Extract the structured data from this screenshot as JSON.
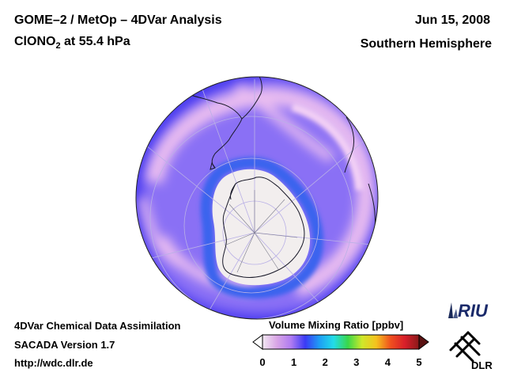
{
  "header": {
    "title_line1": "GOME–2 / MetOp – 4DVar Analysis",
    "title_line2_prefix": "ClONO",
    "title_line2_sub": "2",
    "title_line2_suffix": " at 55.4 hPa",
    "date": "Jun 15, 2008",
    "hemisphere": "Southern Hemisphere"
  },
  "footer": {
    "line1": "4DVar Chemical Data Assimilation",
    "line2": "SACADA Version 1.7",
    "line3": "http://wdc.dlr.de"
  },
  "colorbar": {
    "title": "Volume Mixing Ratio [ppbv]",
    "ticks": [
      "0",
      "1",
      "2",
      "3",
      "4",
      "5"
    ],
    "min": 0,
    "max": 5,
    "colors": [
      "#f2e8f2",
      "#d9a6e6",
      "#b07cf2",
      "#3a3af5",
      "#1e9ef5",
      "#22dce8",
      "#3ad84a",
      "#cfe82a",
      "#f5c21e",
      "#f0501e",
      "#d81e2a",
      "#8a1a1a"
    ]
  },
  "map": {
    "projection": "orthographic south polar",
    "field_colors": {
      "background_band": "#4a3cf0",
      "mid_band": "#8a70f5",
      "high_values": "#eabdf0",
      "polar_vortex": "#f2eeee",
      "inner_edge": "#3a64ee"
    }
  },
  "logos": {
    "riu": "RIU",
    "dlr": "DLR"
  }
}
